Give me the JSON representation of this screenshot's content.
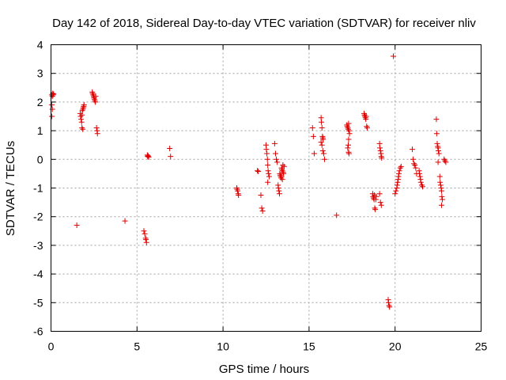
{
  "chart_data": {
    "type": "scatter",
    "title": "Day 142 of 2018, Sidereal Day-to-day VTEC variation (SDTVAR) for receiver nliv",
    "xlabel": "GPS time / hours",
    "ylabel": "SDTVAR / TECUs",
    "xlim": [
      0,
      25
    ],
    "ylim": [
      -6,
      4
    ],
    "x_ticks": [
      0,
      5,
      10,
      15,
      20,
      25
    ],
    "y_ticks": [
      -6,
      -5,
      -4,
      -3,
      -2,
      -1,
      0,
      1,
      2,
      3,
      4
    ],
    "x_tick_labels": [
      "0",
      "5",
      "10",
      "15",
      "20",
      "25"
    ],
    "y_tick_labels": [
      "-6",
      "-5",
      "-4",
      "-3",
      "-2",
      "-1",
      "0",
      "1",
      "2",
      "3",
      "4"
    ],
    "grid": true,
    "marker": "+",
    "color": "#e00000",
    "series": [
      {
        "name": "SDTVAR",
        "points": [
          [
            0.05,
            2.25
          ],
          [
            0.08,
            2.2
          ],
          [
            0.1,
            2.3
          ],
          [
            0.12,
            2.25
          ],
          [
            0.15,
            2.28
          ],
          [
            0.05,
            1.9
          ],
          [
            0.08,
            1.75
          ],
          [
            0.05,
            1.5
          ],
          [
            1.5,
            -2.3
          ],
          [
            1.7,
            1.6
          ],
          [
            1.72,
            1.5
          ],
          [
            1.75,
            1.4
          ],
          [
            1.78,
            1.3
          ],
          [
            1.8,
            1.55
          ],
          [
            1.82,
            1.7
          ],
          [
            1.85,
            1.75
          ],
          [
            1.88,
            1.8
          ],
          [
            1.9,
            1.85
          ],
          [
            1.92,
            1.9
          ],
          [
            1.8,
            1.1
          ],
          [
            1.85,
            1.05
          ],
          [
            2.4,
            2.35
          ],
          [
            2.42,
            2.3
          ],
          [
            2.45,
            2.25
          ],
          [
            2.48,
            2.2
          ],
          [
            2.5,
            2.15
          ],
          [
            2.52,
            2.1
          ],
          [
            2.55,
            2.05
          ],
          [
            2.58,
            2.0
          ],
          [
            2.6,
            2.2
          ],
          [
            2.65,
            1.1
          ],
          [
            2.68,
            1.0
          ],
          [
            2.7,
            0.9
          ],
          [
            4.3,
            -2.15
          ],
          [
            5.4,
            -2.5
          ],
          [
            5.45,
            -2.6
          ],
          [
            5.5,
            -2.75
          ],
          [
            5.52,
            -2.8
          ],
          [
            5.55,
            -2.9
          ],
          [
            5.6,
            0.15
          ],
          [
            5.62,
            0.1
          ],
          [
            5.65,
            0.12
          ],
          [
            5.68,
            0.08
          ],
          [
            6.9,
            0.38
          ],
          [
            6.95,
            0.1
          ],
          [
            10.8,
            -1.0
          ],
          [
            10.82,
            -1.05
          ],
          [
            10.85,
            -1.1
          ],
          [
            10.88,
            -1.2
          ],
          [
            10.9,
            -1.25
          ],
          [
            12.0,
            -0.4
          ],
          [
            12.05,
            -0.42
          ],
          [
            12.2,
            -1.25
          ],
          [
            12.25,
            -1.7
          ],
          [
            12.3,
            -1.8
          ],
          [
            12.5,
            0.5
          ],
          [
            12.52,
            0.35
          ],
          [
            12.55,
            0.2
          ],
          [
            12.58,
            0.0
          ],
          [
            12.6,
            -0.2
          ],
          [
            12.62,
            -0.4
          ],
          [
            12.65,
            -0.5
          ],
          [
            12.68,
            -0.6
          ],
          [
            12.6,
            -0.8
          ],
          [
            13.0,
            0.55
          ],
          [
            13.05,
            0.2
          ],
          [
            13.1,
            0.0
          ],
          [
            13.15,
            -0.1
          ],
          [
            13.2,
            -0.9
          ],
          [
            13.22,
            -1.0
          ],
          [
            13.25,
            -1.1
          ],
          [
            13.28,
            -1.2
          ],
          [
            13.3,
            -0.5
          ],
          [
            13.32,
            -0.55
          ],
          [
            13.35,
            -0.6
          ],
          [
            13.38,
            -0.65
          ],
          [
            13.4,
            -0.3
          ],
          [
            13.42,
            -0.35
          ],
          [
            13.45,
            -0.4
          ],
          [
            13.48,
            -0.2
          ],
          [
            13.5,
            -0.45
          ],
          [
            13.52,
            -0.5
          ],
          [
            13.55,
            -0.25
          ],
          [
            13.4,
            -0.6
          ],
          [
            13.45,
            -0.7
          ],
          [
            15.2,
            1.1
          ],
          [
            15.25,
            0.8
          ],
          [
            15.3,
            0.2
          ],
          [
            15.7,
            1.45
          ],
          [
            15.72,
            1.3
          ],
          [
            15.75,
            1.1
          ],
          [
            15.78,
            0.8
          ],
          [
            15.8,
            0.75
          ],
          [
            15.82,
            0.7
          ],
          [
            15.7,
            0.6
          ],
          [
            15.75,
            0.5
          ],
          [
            15.8,
            0.3
          ],
          [
            15.85,
            0.2
          ],
          [
            15.9,
            0.0
          ],
          [
            16.6,
            -1.95
          ],
          [
            17.2,
            1.2
          ],
          [
            17.22,
            1.15
          ],
          [
            17.25,
            1.1
          ],
          [
            17.28,
            1.05
          ],
          [
            17.3,
            1.25
          ],
          [
            17.32,
            1.0
          ],
          [
            17.35,
            0.9
          ],
          [
            17.3,
            0.7
          ],
          [
            17.28,
            0.5
          ],
          [
            17.25,
            0.4
          ],
          [
            17.3,
            0.25
          ],
          [
            17.32,
            0.2
          ],
          [
            18.2,
            1.6
          ],
          [
            18.22,
            1.55
          ],
          [
            18.25,
            1.5
          ],
          [
            18.28,
            1.45
          ],
          [
            18.3,
            1.4
          ],
          [
            18.32,
            1.5
          ],
          [
            18.35,
            1.15
          ],
          [
            18.38,
            1.1
          ],
          [
            18.7,
            -1.2
          ],
          [
            18.72,
            -1.3
          ],
          [
            18.75,
            -1.35
          ],
          [
            18.78,
            -1.4
          ],
          [
            18.8,
            -1.25
          ],
          [
            18.82,
            -1.7
          ],
          [
            18.85,
            -1.75
          ],
          [
            18.88,
            -1.4
          ],
          [
            18.9,
            -1.3
          ],
          [
            19.1,
            0.55
          ],
          [
            19.12,
            0.4
          ],
          [
            19.15,
            0.3
          ],
          [
            19.18,
            0.2
          ],
          [
            19.2,
            0.1
          ],
          [
            19.22,
            0.05
          ],
          [
            19.1,
            -1.2
          ],
          [
            19.15,
            -1.5
          ],
          [
            19.2,
            -1.6
          ],
          [
            19.6,
            -4.9
          ],
          [
            19.62,
            -5.0
          ],
          [
            19.65,
            -5.1
          ],
          [
            19.68,
            -5.15
          ],
          [
            19.9,
            3.6
          ],
          [
            20.0,
            -1.2
          ],
          [
            20.05,
            -1.1
          ],
          [
            20.1,
            -1.0
          ],
          [
            20.12,
            -0.9
          ],
          [
            20.15,
            -0.8
          ],
          [
            20.18,
            -0.7
          ],
          [
            20.2,
            -0.6
          ],
          [
            20.22,
            -0.5
          ],
          [
            20.25,
            -0.4
          ],
          [
            20.3,
            -0.3
          ],
          [
            20.35,
            -0.25
          ],
          [
            21.0,
            0.35
          ],
          [
            21.05,
            0.0
          ],
          [
            21.1,
            -0.15
          ],
          [
            21.15,
            -0.2
          ],
          [
            21.2,
            -0.3
          ],
          [
            21.25,
            -0.5
          ],
          [
            21.4,
            -0.4
          ],
          [
            21.42,
            -0.5
          ],
          [
            21.45,
            -0.6
          ],
          [
            21.48,
            -0.7
          ],
          [
            21.5,
            -0.8
          ],
          [
            21.55,
            -0.9
          ],
          [
            21.6,
            -0.95
          ],
          [
            22.4,
            1.4
          ],
          [
            22.42,
            0.9
          ],
          [
            22.45,
            0.55
          ],
          [
            22.48,
            0.45
          ],
          [
            22.5,
            0.4
          ],
          [
            22.52,
            0.3
          ],
          [
            22.55,
            0.2
          ],
          [
            22.5,
            -0.1
          ],
          [
            22.6,
            -0.6
          ],
          [
            22.62,
            -0.8
          ],
          [
            22.65,
            -0.9
          ],
          [
            22.68,
            -1.0
          ],
          [
            22.7,
            -1.1
          ],
          [
            22.72,
            -1.3
          ],
          [
            22.75,
            -1.4
          ],
          [
            22.7,
            -1.6
          ],
          [
            22.85,
            0.0
          ],
          [
            22.9,
            -0.05
          ],
          [
            22.95,
            -0.1
          ]
        ]
      }
    ]
  }
}
